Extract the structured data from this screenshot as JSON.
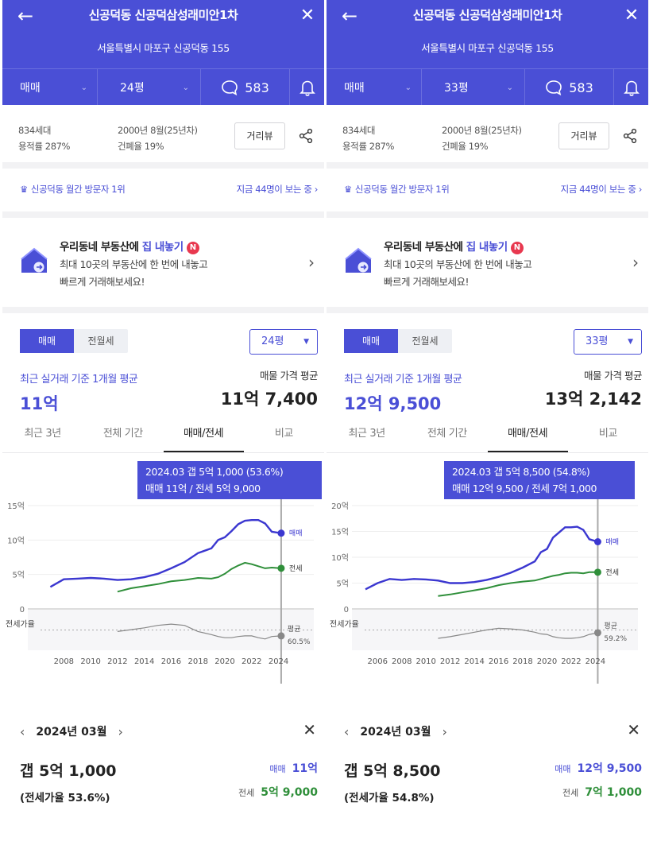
{
  "colors": {
    "brand": "#4a4fd6",
    "sale_line": "#3b37d0",
    "jeonse_line": "#2f8f3a",
    "ratio_line": "#888888"
  },
  "panels": [
    {
      "header": {
        "back_icon": "←",
        "title": "신공덕동 신공덕삼성래미안1차",
        "close_icon": "✕",
        "address": "서울특별시 마포구 신공덕동 155",
        "deal_type": "매매",
        "area": "24평",
        "comment_count": "583"
      },
      "info": {
        "households": "834세대",
        "floor_area_ratio": "용적률 287%",
        "built": "2000년 8월(25년차)",
        "coverage_ratio": "건폐율 19%",
        "street_view_btn": "거리뷰"
      },
      "visitors": {
        "rank": "신공덕동 월간 방문자 1위",
        "viewing": "지금 44명이 보는 중 ›"
      },
      "promo": {
        "title_prefix": "우리동네 부동산에 ",
        "title_highlight": "집 내놓기",
        "badge": "N",
        "desc_line1": "최대 10곳의 부동산에 한 번에 내놓고",
        "desc_line2": "빠르게 거래해보세요!"
      },
      "price": {
        "tab_sale": "매매",
        "tab_rent": "전월세",
        "area_select": "24평",
        "recent_label": "최근 실거래 기준 1개월 평균",
        "recent_value": "11억",
        "listing_label": "매물 가격 평균",
        "listing_value": "11억 7,400"
      },
      "period_tabs": [
        "최근 3년",
        "전체 기간",
        "매매/전세",
        "비교"
      ],
      "tooltip": {
        "line1": "2024.03  갭 5억 1,000 (53.6%)",
        "line2": "매매 11억 / 전세 5억 9,000"
      },
      "chart_data": {
        "type": "line",
        "x": [
          2007.0,
          2008.0,
          2009.0,
          2010.0,
          2011.0,
          2012.0,
          2013.0,
          2014.0,
          2015.0,
          2016.0,
          2017.0,
          2018.0,
          2019.0,
          2019.5,
          2020.0,
          2020.5,
          2021.0,
          2021.5,
          2022.0,
          2022.5,
          2023.0,
          2023.5,
          2024.2
        ],
        "series": [
          {
            "name": "매매",
            "values": [
              3.2,
              4.3,
              4.4,
              4.5,
              4.4,
              4.2,
              4.3,
              4.6,
              5.1,
              5.9,
              6.8,
              8.1,
              8.8,
              10.0,
              10.4,
              11.3,
              12.3,
              12.8,
              12.9,
              12.9,
              12.4,
              11.2,
              11.0
            ]
          },
          {
            "name": "전세",
            "values": [
              null,
              null,
              null,
              null,
              null,
              2.5,
              3.0,
              3.3,
              3.6,
              4.0,
              4.2,
              4.5,
              4.4,
              4.6,
              5.1,
              5.8,
              6.3,
              6.7,
              6.5,
              6.2,
              5.9,
              6.0,
              5.9
            ]
          }
        ],
        "ratio_series": {
          "name": "전세가율",
          "values": [
            null,
            null,
            null,
            null,
            null,
            60,
            63,
            66,
            70,
            72,
            70,
            60,
            55,
            52,
            50,
            50,
            52,
            53,
            53,
            50,
            48,
            52,
            53
          ]
        },
        "x_ticks": [
          "2008",
          "2010",
          "2012",
          "2014",
          "2016",
          "2018",
          "2020",
          "2022",
          "2024"
        ],
        "y_ticks": [
          "15억",
          "10억",
          "5억",
          "0"
        ],
        "ylim": [
          0,
          15
        ],
        "ratio_label": "전세가율",
        "sale_end_label": "매매",
        "jeonse_end_label": "전세",
        "ratio_end_label": "평균",
        "ratio_end_value": "60.5%"
      },
      "detail": {
        "month": "2024년 03월",
        "gap": "갭 5억 1,000",
        "ratio": "(전세가율 53.6%)",
        "sale_label": "매매",
        "sale_value": "11억",
        "jeonse_label": "전세",
        "jeonse_value": "5억 9,000"
      }
    },
    {
      "header": {
        "back_icon": "←",
        "title": "신공덕동 신공덕삼성래미안1차",
        "close_icon": "✕",
        "address": "서울특별시 마포구 신공덕동 155",
        "deal_type": "매매",
        "area": "33평",
        "comment_count": "583"
      },
      "info": {
        "households": "834세대",
        "floor_area_ratio": "용적률 287%",
        "built": "2000년 8월(25년차)",
        "coverage_ratio": "건폐율 19%",
        "street_view_btn": "거리뷰"
      },
      "visitors": {
        "rank": "신공덕동 월간 방문자 1위",
        "viewing": "지금 44명이 보는 중 ›"
      },
      "promo": {
        "title_prefix": "우리동네 부동산에 ",
        "title_highlight": "집 내놓기",
        "badge": "N",
        "desc_line1": "최대 10곳의 부동산에 한 번에 내놓고",
        "desc_line2": "빠르게 거래해보세요!"
      },
      "price": {
        "tab_sale": "매매",
        "tab_rent": "전월세",
        "area_select": "33평",
        "recent_label": "최근 실거래 기준 1개월 평균",
        "recent_value": "12억 9,500",
        "listing_label": "매물 가격 평균",
        "listing_value": "13억 2,142"
      },
      "period_tabs": [
        "최근 3년",
        "전체 기간",
        "매매/전세",
        "비교"
      ],
      "tooltip": {
        "line1": "2024.03  갭 5억 8,500 (54.8%)",
        "line2": "매매 12억 9,500 / 전세 7억 1,000"
      },
      "chart_data": {
        "type": "line",
        "x": [
          2005.0,
          2006.0,
          2007.0,
          2008.0,
          2009.0,
          2010.0,
          2011.0,
          2012.0,
          2013.0,
          2014.0,
          2015.0,
          2016.0,
          2017.0,
          2018.0,
          2019.0,
          2019.5,
          2020.0,
          2020.5,
          2021.0,
          2021.5,
          2022.0,
          2022.5,
          2023.0,
          2023.5,
          2024.2
        ],
        "series": [
          {
            "name": "매매",
            "values": [
              3.8,
              5.0,
              5.8,
              5.6,
              5.8,
              5.7,
              5.5,
              5.0,
              5.0,
              5.2,
              5.6,
              6.2,
              7.0,
              8.0,
              9.2,
              11.0,
              11.6,
              13.8,
              14.8,
              15.8,
              15.8,
              15.9,
              15.3,
              13.5,
              13.0
            ]
          },
          {
            "name": "전세",
            "values": [
              null,
              null,
              null,
              null,
              null,
              null,
              2.5,
              2.8,
              3.2,
              3.6,
              4.0,
              4.6,
              5.0,
              5.3,
              5.5,
              5.8,
              6.1,
              6.4,
              6.6,
              6.9,
              7.0,
              7.0,
              6.9,
              7.1,
              7.1
            ]
          }
        ],
        "ratio_series": {
          "name": "전세가율",
          "values": [
            null,
            null,
            null,
            null,
            null,
            null,
            45,
            48,
            52,
            56,
            60,
            63,
            62,
            60,
            56,
            53,
            52,
            48,
            46,
            45,
            45,
            46,
            48,
            52,
            55
          ]
        },
        "x_ticks": [
          "2006",
          "2008",
          "2010",
          "2012",
          "2014",
          "2016",
          "2018",
          "2020",
          "2022",
          "2024"
        ],
        "y_ticks": [
          "20억",
          "15억",
          "10억",
          "5억",
          "0"
        ],
        "ylim": [
          0,
          20
        ],
        "ratio_label": "전세가율",
        "sale_end_label": "매매",
        "jeonse_end_label": "전세",
        "ratio_end_label": "평균",
        "ratio_end_value": "59.2%"
      },
      "detail": {
        "month": "2024년 03월",
        "gap": "갭 5억 8,500",
        "ratio": "(전세가율 54.8%)",
        "sale_label": "매매",
        "sale_value": "12억 9,500",
        "jeonse_label": "전세",
        "jeonse_value": "7억 1,000"
      }
    }
  ]
}
